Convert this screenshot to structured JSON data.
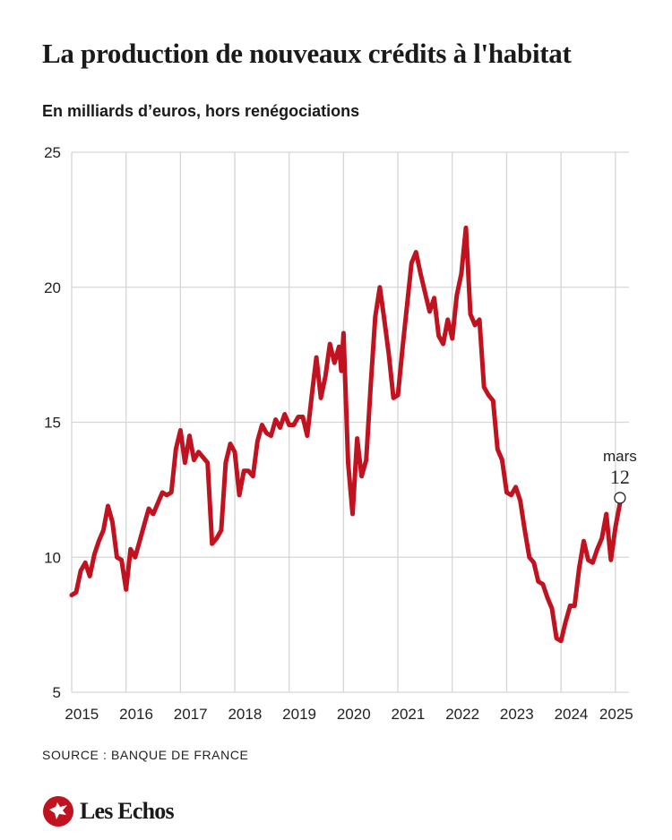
{
  "chart_data": {
    "type": "line",
    "title": "La production de nouveaux crédits à l'habitat",
    "subtitle": "En milliards d’euros, hors renégociations",
    "xlabel": "",
    "ylabel": "",
    "xlim": [
      2015.0,
      2025.25
    ],
    "ylim": [
      5,
      25
    ],
    "y_ticks": [
      5,
      10,
      15,
      20,
      25
    ],
    "x_tick_labels": [
      "2015",
      "2016",
      "2017",
      "2018",
      "2019",
      "2020",
      "2021",
      "2022",
      "2023",
      "2024",
      "2025"
    ],
    "grid": true,
    "line_color": "#c1121f",
    "series": [
      {
        "name": "Production de nouveaux crédits à l'habitat",
        "points": [
          [
            2015.0,
            8.6
          ],
          [
            2015.083,
            8.7
          ],
          [
            2015.167,
            9.5
          ],
          [
            2015.25,
            9.8
          ],
          [
            2015.333,
            9.3
          ],
          [
            2015.417,
            10.1
          ],
          [
            2015.5,
            10.6
          ],
          [
            2015.583,
            11.0
          ],
          [
            2015.667,
            11.9
          ],
          [
            2015.75,
            11.3
          ],
          [
            2015.833,
            10.0
          ],
          [
            2015.917,
            9.9
          ],
          [
            2016.0,
            8.8
          ],
          [
            2016.083,
            10.3
          ],
          [
            2016.167,
            10.0
          ],
          [
            2016.25,
            10.6
          ],
          [
            2016.333,
            11.2
          ],
          [
            2016.417,
            11.8
          ],
          [
            2016.5,
            11.6
          ],
          [
            2016.583,
            12.0
          ],
          [
            2016.667,
            12.4
          ],
          [
            2016.75,
            12.3
          ],
          [
            2016.833,
            12.4
          ],
          [
            2016.917,
            14.0
          ],
          [
            2017.0,
            14.7
          ],
          [
            2017.083,
            13.5
          ],
          [
            2017.167,
            14.5
          ],
          [
            2017.25,
            13.6
          ],
          [
            2017.333,
            13.9
          ],
          [
            2017.417,
            13.7
          ],
          [
            2017.5,
            13.5
          ],
          [
            2017.583,
            10.5
          ],
          [
            2017.667,
            10.7
          ],
          [
            2017.75,
            11.0
          ],
          [
            2017.833,
            13.5
          ],
          [
            2017.917,
            14.2
          ],
          [
            2018.0,
            13.9
          ],
          [
            2018.083,
            12.3
          ],
          [
            2018.167,
            13.2
          ],
          [
            2018.25,
            13.2
          ],
          [
            2018.333,
            13.0
          ],
          [
            2018.417,
            14.3
          ],
          [
            2018.5,
            14.9
          ],
          [
            2018.583,
            14.6
          ],
          [
            2018.667,
            14.5
          ],
          [
            2018.75,
            15.1
          ],
          [
            2018.833,
            14.8
          ],
          [
            2018.917,
            15.3
          ],
          [
            2019.0,
            14.9
          ],
          [
            2019.083,
            14.9
          ],
          [
            2019.167,
            15.2
          ],
          [
            2019.25,
            15.2
          ],
          [
            2019.333,
            14.5
          ],
          [
            2019.417,
            16.0
          ],
          [
            2019.5,
            17.4
          ],
          [
            2019.583,
            15.9
          ],
          [
            2019.667,
            16.7
          ],
          [
            2019.75,
            17.9
          ],
          [
            2019.833,
            17.2
          ],
          [
            2019.917,
            17.8
          ],
          [
            2019.958,
            16.9
          ],
          [
            2020.0,
            18.3
          ],
          [
            2020.083,
            13.5
          ],
          [
            2020.167,
            11.6
          ],
          [
            2020.25,
            14.4
          ],
          [
            2020.333,
            13.0
          ],
          [
            2020.417,
            13.6
          ],
          [
            2020.5,
            16.4
          ],
          [
            2020.583,
            18.9
          ],
          [
            2020.667,
            20.0
          ],
          [
            2020.75,
            18.8
          ],
          [
            2020.833,
            17.5
          ],
          [
            2020.917,
            15.9
          ],
          [
            2021.0,
            16.0
          ],
          [
            2021.083,
            17.7
          ],
          [
            2021.167,
            19.3
          ],
          [
            2021.25,
            20.9
          ],
          [
            2021.333,
            21.3
          ],
          [
            2021.417,
            20.5
          ],
          [
            2021.5,
            19.8
          ],
          [
            2021.583,
            19.1
          ],
          [
            2021.667,
            19.6
          ],
          [
            2021.75,
            18.2
          ],
          [
            2021.833,
            17.9
          ],
          [
            2021.917,
            18.8
          ],
          [
            2022.0,
            18.1
          ],
          [
            2022.083,
            19.7
          ],
          [
            2022.167,
            20.5
          ],
          [
            2022.25,
            22.2
          ],
          [
            2022.333,
            19.0
          ],
          [
            2022.417,
            18.6
          ],
          [
            2022.5,
            18.8
          ],
          [
            2022.583,
            16.3
          ],
          [
            2022.667,
            16.0
          ],
          [
            2022.75,
            15.8
          ],
          [
            2022.833,
            14.0
          ],
          [
            2022.917,
            13.6
          ],
          [
            2023.0,
            12.4
          ],
          [
            2023.083,
            12.3
          ],
          [
            2023.167,
            12.6
          ],
          [
            2023.25,
            12.1
          ],
          [
            2023.333,
            11.0
          ],
          [
            2023.417,
            10.0
          ],
          [
            2023.5,
            9.8
          ],
          [
            2023.583,
            9.1
          ],
          [
            2023.667,
            9.0
          ],
          [
            2023.75,
            8.5
          ],
          [
            2023.833,
            8.1
          ],
          [
            2023.917,
            7.0
          ],
          [
            2024.0,
            6.9
          ],
          [
            2024.083,
            7.6
          ],
          [
            2024.167,
            8.2
          ],
          [
            2024.25,
            8.2
          ],
          [
            2024.333,
            9.6
          ],
          [
            2024.417,
            10.6
          ],
          [
            2024.5,
            9.9
          ],
          [
            2024.583,
            9.8
          ],
          [
            2024.667,
            10.3
          ],
          [
            2024.75,
            10.7
          ],
          [
            2024.833,
            11.6
          ],
          [
            2024.917,
            9.9
          ],
          [
            2025.0,
            11.1
          ],
          [
            2025.083,
            12.0
          ]
        ]
      }
    ],
    "annotation": {
      "x": 2025.083,
      "y": 12.2,
      "label": "mars",
      "value": "12"
    }
  },
  "source": "SOURCE : BANQUE DE FRANCE",
  "brand": "Les Echos",
  "brand_color": "#c1121f"
}
